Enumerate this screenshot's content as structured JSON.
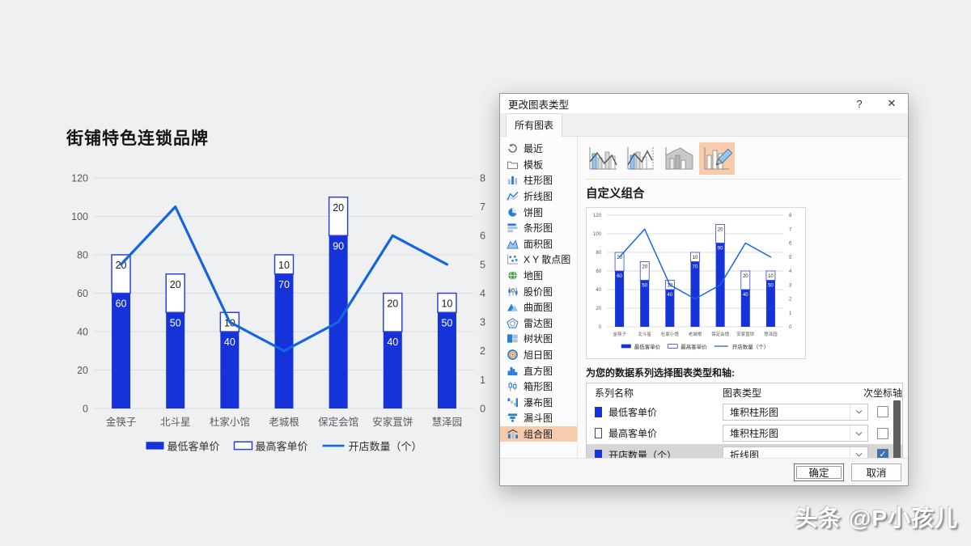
{
  "page": {
    "watermark": "头条 @P小孩儿"
  },
  "colors": {
    "background": "#eff0f1",
    "bar_fill": "#1533d9",
    "bar_outline": "#2e43d4",
    "line": "#1565e0",
    "grid": "#dcdcdc",
    "axis_text": "#595959",
    "label_dark": "#1a1a1a",
    "highlight": "#f8cbad",
    "check_blue": "#3f6fbf"
  },
  "chart_data": {
    "type": "combo",
    "title": "街铺特色连锁品牌",
    "categories": [
      "金筷子",
      "北斗星",
      "杜家小馆",
      "老城根",
      "保定会馆",
      "安家罝饼",
      "慧泽园"
    ],
    "series": [
      {
        "name": "最低客单价",
        "type": "stacked-column",
        "axis": "primary",
        "values": [
          60,
          50,
          40,
          70,
          90,
          40,
          50
        ]
      },
      {
        "name": "最高客单价",
        "type": "stacked-column",
        "axis": "primary",
        "values": [
          20,
          20,
          10,
          10,
          20,
          20,
          10
        ]
      },
      {
        "name": "开店数量（个）",
        "type": "line",
        "axis": "secondary",
        "values": [
          5,
          7,
          3,
          2,
          3,
          6,
          5
        ]
      }
    ],
    "primary_axis": {
      "min": 0,
      "max": 120,
      "step": 20
    },
    "secondary_axis": {
      "min": 0,
      "max": 8,
      "step": 1
    },
    "legend_position": "bottom",
    "grid": true,
    "data_labels": true
  },
  "dialog": {
    "title": "更改图表类型",
    "help_label": "?",
    "close_label": "✕",
    "tab_label": "所有图表",
    "chart_types": [
      {
        "label": "最近",
        "icon": "recent-icon",
        "selected": false
      },
      {
        "label": "模板",
        "icon": "template-icon",
        "selected": false
      },
      {
        "label": "柱形图",
        "icon": "column-chart-icon",
        "selected": false
      },
      {
        "label": "折线图",
        "icon": "line-chart-icon",
        "selected": false
      },
      {
        "label": "饼图",
        "icon": "pie-chart-icon",
        "selected": false
      },
      {
        "label": "条形图",
        "icon": "bar-chart-icon",
        "selected": false
      },
      {
        "label": "面积图",
        "icon": "area-chart-icon",
        "selected": false
      },
      {
        "label": "X Y 散点图",
        "icon": "scatter-chart-icon",
        "selected": false
      },
      {
        "label": "地图",
        "icon": "map-chart-icon",
        "selected": false
      },
      {
        "label": "股价图",
        "icon": "stock-chart-icon",
        "selected": false
      },
      {
        "label": "曲面图",
        "icon": "surface-chart-icon",
        "selected": false
      },
      {
        "label": "雷达图",
        "icon": "radar-chart-icon",
        "selected": false
      },
      {
        "label": "树状图",
        "icon": "treemap-chart-icon",
        "selected": false
      },
      {
        "label": "旭日图",
        "icon": "sunburst-chart-icon",
        "selected": false
      },
      {
        "label": "直方图",
        "icon": "histogram-chart-icon",
        "selected": false
      },
      {
        "label": "箱形图",
        "icon": "box-whisker-chart-icon",
        "selected": false
      },
      {
        "label": "瀑布图",
        "icon": "waterfall-chart-icon",
        "selected": false
      },
      {
        "label": "漏斗图",
        "icon": "funnel-chart-icon",
        "selected": false
      },
      {
        "label": "组合图",
        "icon": "combo-chart-icon",
        "selected": true
      }
    ],
    "subtypes": [
      {
        "icon": "clustered-column-line-icon",
        "selected": false
      },
      {
        "icon": "clustered-column-line-secondary-axis-icon",
        "selected": false
      },
      {
        "icon": "stacked-area-clustered-column-icon",
        "selected": false
      },
      {
        "icon": "custom-combination-icon",
        "selected": true
      }
    ],
    "section_title": "自定义组合",
    "series_prompt": "为您的数据系列选择图表类型和轴:",
    "table": {
      "headers": [
        "系列名称",
        "图表类型",
        "次坐标轴"
      ],
      "rows": [
        {
          "name": "最低客单价",
          "swatch": "solid",
          "chart_type": "堆积柱形图",
          "secondary_axis": false,
          "selected": false
        },
        {
          "name": "最高客单价",
          "swatch": "outline",
          "chart_type": "堆积柱形图",
          "secondary_axis": false,
          "selected": false
        },
        {
          "name": "开店数量（个）",
          "swatch": "solid",
          "chart_type": "折线图",
          "secondary_axis": true,
          "selected": true
        }
      ]
    },
    "ok_label": "确定",
    "cancel_label": "取消"
  }
}
